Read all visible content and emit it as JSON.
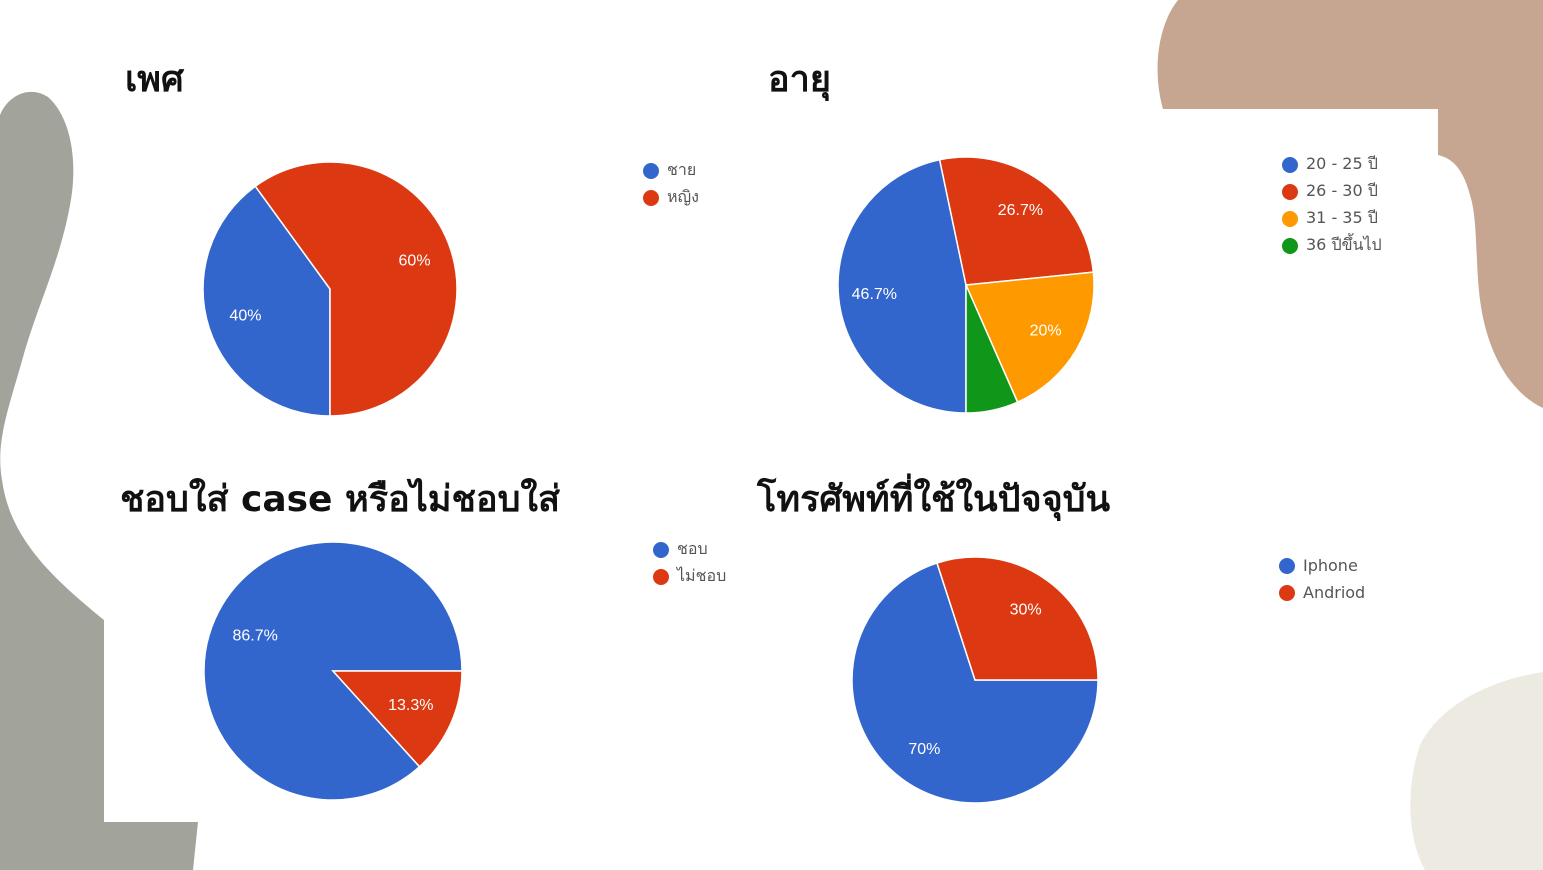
{
  "background": {
    "colors": {
      "panel": "#ffffff",
      "gray": "#a2a39b",
      "tan": "#c6a591",
      "cream": "#edebe1"
    }
  },
  "chart_data": [
    {
      "type": "pie",
      "title": "เพศ",
      "categories": [
        "ชาย",
        "หญิง"
      ],
      "values": [
        40,
        60
      ],
      "labels": [
        "40%",
        "60%"
      ],
      "colors": [
        "#3366cc",
        "#dc3912"
      ],
      "legend_position": "right"
    },
    {
      "type": "pie",
      "title": "อายุ",
      "categories": [
        "20 - 25 ปี",
        "26 - 30 ปี",
        "31 - 35 ปี",
        "36 ปีขึ้นไป"
      ],
      "values": [
        46.7,
        26.7,
        20,
        6.6
      ],
      "labels": [
        "46.7%",
        "26.7%",
        "20%",
        ""
      ],
      "colors": [
        "#3366cc",
        "#dc3912",
        "#ff9900",
        "#109618"
      ],
      "legend_position": "right"
    },
    {
      "type": "pie",
      "title": "ชอบใส่ case หรือไม่ชอบใส่",
      "categories": [
        "ชอบ",
        "ไม่ชอบ"
      ],
      "values": [
        86.7,
        13.3
      ],
      "labels": [
        "86.7%",
        "13.3%"
      ],
      "colors": [
        "#3366cc",
        "#dc3912"
      ],
      "legend_position": "right"
    },
    {
      "type": "pie",
      "title": "โทรศัพท์ที่ใช้ในปัจจุบัน",
      "categories": [
        "Iphone",
        "Andriod"
      ],
      "values": [
        70,
        30
      ],
      "labels": [
        "70%",
        "30%"
      ],
      "colors": [
        "#3366cc",
        "#dc3912"
      ],
      "legend_position": "right"
    }
  ]
}
